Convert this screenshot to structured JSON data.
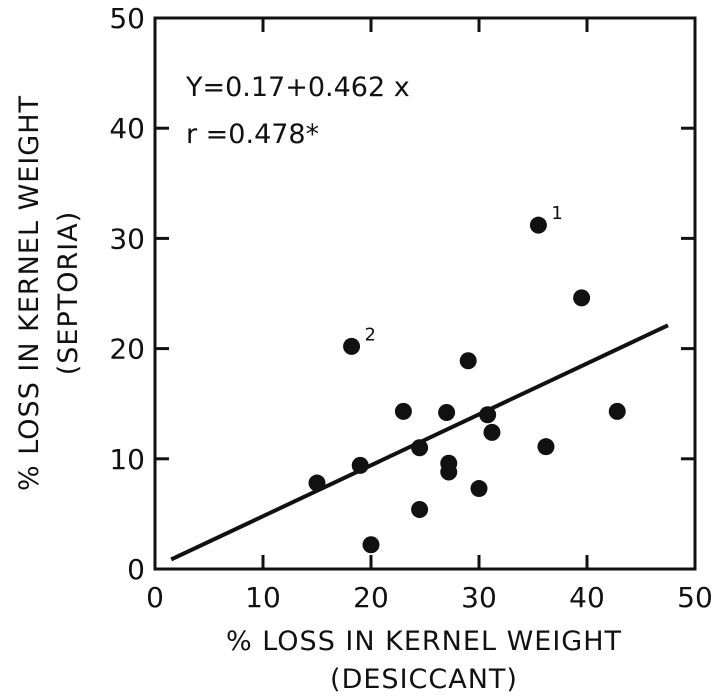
{
  "chart_data": {
    "type": "scatter",
    "xlabel": "% LOSS IN KERNEL WEIGHT",
    "xlabel_sub": "(DESICCANT)",
    "ylabel": "% LOSS IN KERNEL WEIGHT",
    "ylabel_sub": "(SEPTORIA)",
    "xlim": [
      0,
      50
    ],
    "ylim": [
      0,
      50
    ],
    "xticks": [
      0,
      10,
      20,
      30,
      40,
      50
    ],
    "yticks": [
      0,
      10,
      20,
      30,
      40,
      50
    ],
    "grid": false,
    "annotations": {
      "equation": "Y=0.17+0.462 x",
      "r": "r =0.478*"
    },
    "regression": {
      "intercept": 0.17,
      "slope": 0.462,
      "x_start": 1.5,
      "x_end": 47.5
    },
    "points": [
      {
        "x": 15,
        "y": 7.8
      },
      {
        "x": 18.2,
        "y": 20.2,
        "label": "2"
      },
      {
        "x": 19,
        "y": 9.4
      },
      {
        "x": 20,
        "y": 2.2
      },
      {
        "x": 23,
        "y": 14.3
      },
      {
        "x": 24.5,
        "y": 5.4
      },
      {
        "x": 24.5,
        "y": 11
      },
      {
        "x": 27,
        "y": 14.2
      },
      {
        "x": 27.2,
        "y": 9.6
      },
      {
        "x": 27.2,
        "y": 8.8
      },
      {
        "x": 29,
        "y": 18.9
      },
      {
        "x": 30,
        "y": 7.3
      },
      {
        "x": 30.8,
        "y": 14
      },
      {
        "x": 31.2,
        "y": 12.4
      },
      {
        "x": 35.5,
        "y": 31.2,
        "label": "1"
      },
      {
        "x": 36.2,
        "y": 11.1
      },
      {
        "x": 39.5,
        "y": 24.6
      },
      {
        "x": 42.8,
        "y": 14.3
      }
    ]
  }
}
